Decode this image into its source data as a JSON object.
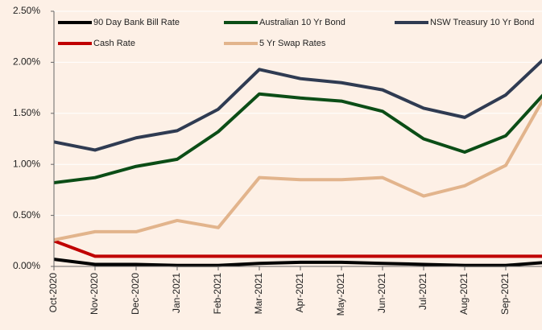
{
  "chart_data": {
    "type": "line",
    "categories": [
      "Oct-2020",
      "Nov-2020",
      "Dec-2020",
      "Jan-2021",
      "Feb-2021",
      "Mar-2021",
      "Apr-2021",
      "May-2021",
      "Jun-2021",
      "Jul-2021",
      "Aug-2021",
      "Sep-2021",
      null
    ],
    "series": [
      {
        "name": "90 Day Bank Bill Rate",
        "color": "#000000",
        "values": [
          0.07,
          0.02,
          0.02,
          0.01,
          0.01,
          0.03,
          0.04,
          0.04,
          0.03,
          0.02,
          0.01,
          0.01,
          0.04
        ]
      },
      {
        "name": "Australian 10 Yr Bond",
        "color": "#0b4d16",
        "values": [
          0.82,
          0.87,
          0.98,
          1.05,
          1.32,
          1.69,
          1.65,
          1.62,
          1.52,
          1.25,
          1.12,
          1.28,
          1.72
        ]
      },
      {
        "name": "NSW Treasury 10 Yr Bond",
        "color": "#2f3b52",
        "values": [
          1.22,
          1.14,
          1.26,
          1.33,
          1.54,
          1.93,
          1.84,
          1.8,
          1.73,
          1.55,
          1.46,
          1.68,
          2.06
        ]
      },
      {
        "name": "Cash Rate",
        "color": "#c00000",
        "values": [
          0.25,
          0.1,
          0.1,
          0.1,
          0.1,
          0.1,
          0.1,
          0.1,
          0.1,
          0.1,
          0.1,
          0.1,
          0.1
        ]
      },
      {
        "name": "5 Yr Swap Rates",
        "color": "#e2b48c",
        "values": [
          0.26,
          0.34,
          0.34,
          0.45,
          0.38,
          0.87,
          0.85,
          0.85,
          0.87,
          0.69,
          0.79,
          0.99,
          1.7
        ]
      }
    ],
    "ylim": [
      0,
      2.5
    ],
    "yticks": [
      {
        "value": 0,
        "label": "0.00%"
      },
      {
        "value": 0.5,
        "label": "0.50%"
      },
      {
        "value": 1,
        "label": "1.00%"
      },
      {
        "value": 1.5,
        "label": "1.50%"
      },
      {
        "value": 2,
        "label": "2.00%"
      },
      {
        "value": 2.5,
        "label": "2.50%"
      }
    ],
    "grid": true
  }
}
